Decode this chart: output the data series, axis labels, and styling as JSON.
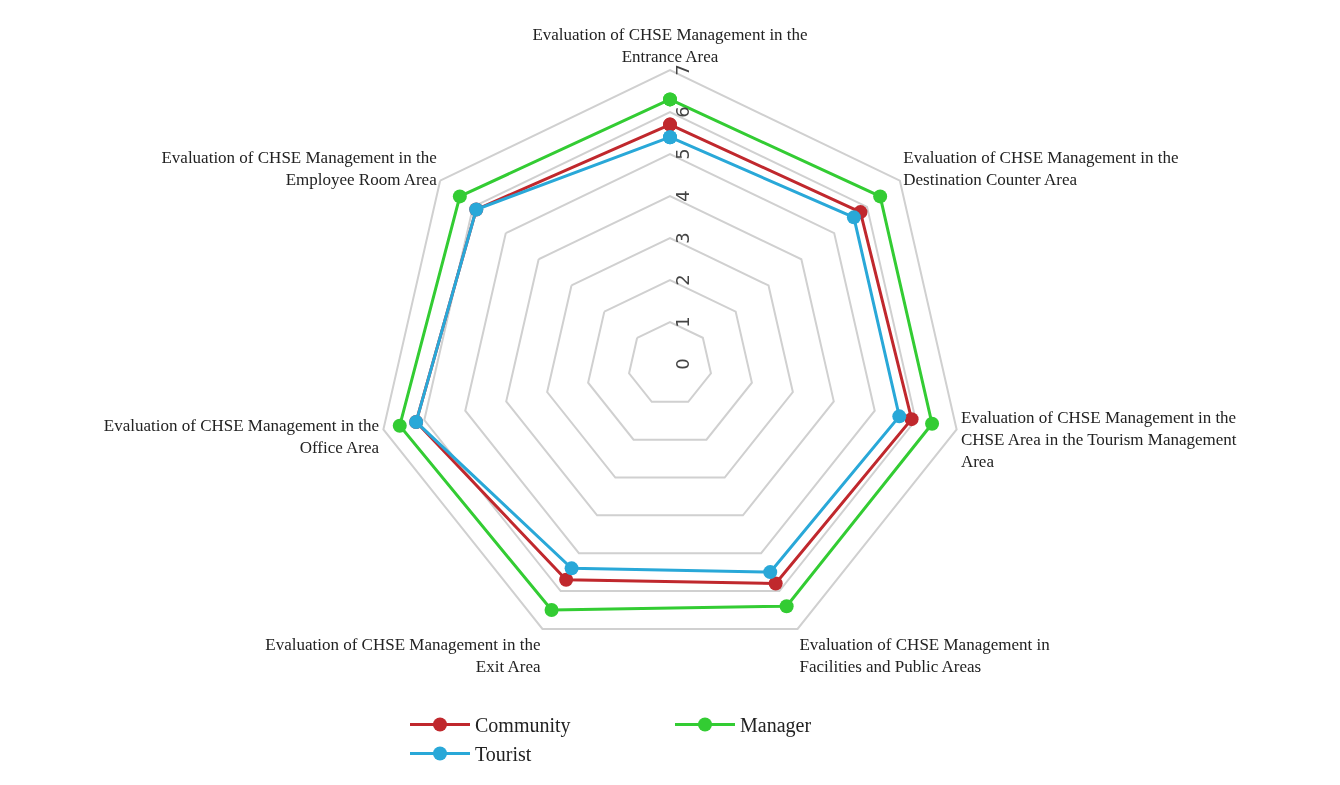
{
  "chart_data": {
    "type": "radar",
    "categories": [
      "Evaluation of CHSE Management in the Entrance Area",
      "Evaluation of CHSE Management in the Destination Counter Area",
      "Evaluation of CHSE Management in the CHSE Area in the Tourism Management Area",
      "Evaluation of CHSE Management in Facilities and Public Areas",
      "Evaluation of CHSE Management in the Exit Area",
      "Evaluation of CHSE Management in the Office Area",
      "Evaluation of CHSE Management in the Employee Room Area"
    ],
    "series": [
      {
        "name": "Community",
        "color": "#c0282d",
        "values": [
          5.7,
          5.8,
          5.9,
          5.8,
          5.7,
          6.2,
          5.9
        ]
      },
      {
        "name": "Manager",
        "color": "#33cc33",
        "values": [
          6.3,
          6.4,
          6.4,
          6.4,
          6.5,
          6.6,
          6.4
        ]
      },
      {
        "name": "Tourist",
        "color": "#29a8d8",
        "values": [
          5.4,
          5.6,
          5.6,
          5.5,
          5.4,
          6.2,
          5.9
        ]
      }
    ],
    "ylim": [
      0,
      7
    ],
    "yticks": [
      0,
      1,
      2,
      3,
      4,
      5,
      6,
      7
    ],
    "grid": "y",
    "legend": "bottom",
    "marker": "circle",
    "line_style": "solid"
  }
}
